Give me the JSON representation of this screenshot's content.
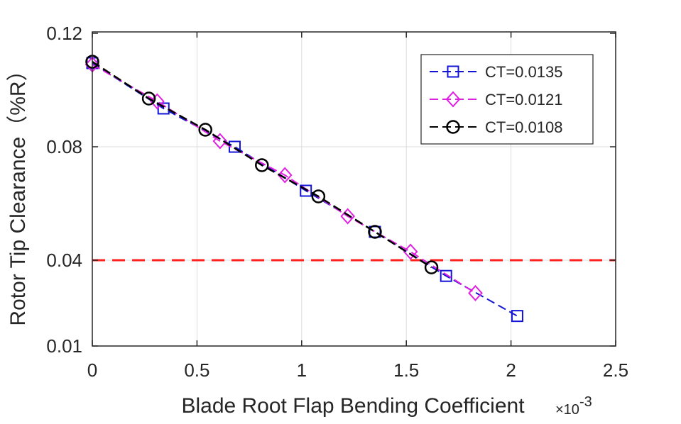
{
  "chart_data": {
    "type": "line",
    "xlabel": "Blade Root Flap Bending Coefficient",
    "x_multiplier_prefix": "×10",
    "x_multiplier_exponent": "-3",
    "ylabel": "Rotor Tip Clearance（%R）",
    "xlim": [
      0,
      2.5
    ],
    "ylim": [
      0.01,
      0.12
    ],
    "x_ticks": [
      0,
      0.5,
      1,
      1.5,
      2,
      2.5
    ],
    "x_tick_labels": [
      "0",
      "0.5",
      "1",
      "1.5",
      "2",
      "2.5"
    ],
    "y_ticks": [
      0.01,
      0.04,
      0.08,
      0.12
    ],
    "y_tick_labels": [
      "0.01",
      "0.04",
      "0.08",
      "0.12"
    ],
    "grid": true,
    "legend_position": "top-right",
    "reference_line": {
      "y": 0.04,
      "color": "#ff2020",
      "style": "dashed"
    },
    "series": [
      {
        "name": "CT=0.0135",
        "color": "#1414d6",
        "marker": "square",
        "x": [
          0,
          0.34,
          0.68,
          1.02,
          1.35,
          1.69,
          2.03
        ],
        "y": [
          0.1095,
          0.0935,
          0.08,
          0.0645,
          0.05,
          0.0345,
          0.0205
        ]
      },
      {
        "name": "CT=0.0121",
        "color": "#e020e0",
        "marker": "diamond",
        "x": [
          0,
          0.31,
          0.61,
          0.92,
          1.22,
          1.52,
          1.83
        ],
        "y": [
          0.109,
          0.096,
          0.082,
          0.07,
          0.0555,
          0.043,
          0.0285
        ]
      },
      {
        "name": "CT=0.0108",
        "color": "#000000",
        "marker": "circle",
        "x": [
          0,
          0.27,
          0.54,
          0.81,
          1.08,
          1.35,
          1.62
        ],
        "y": [
          0.11,
          0.097,
          0.086,
          0.0735,
          0.0625,
          0.05,
          0.0375
        ]
      }
    ]
  }
}
